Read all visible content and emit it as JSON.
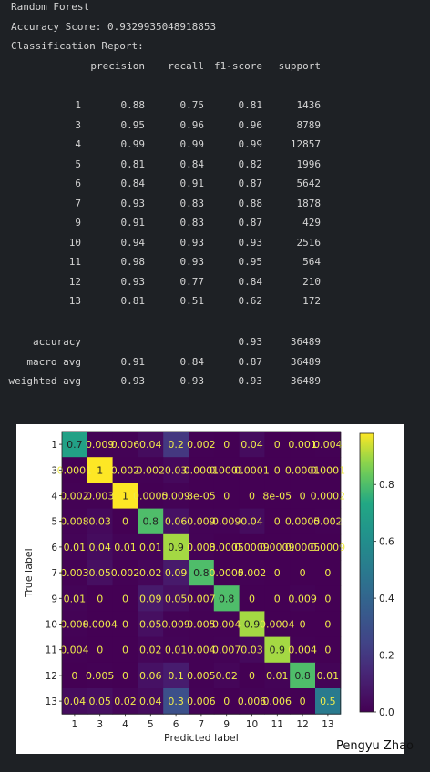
{
  "output": {
    "model_name": "Random Forest",
    "accuracy_line": "Accuracy Score: 0.9329935048918853",
    "report_title": "Classification Report:",
    "headers": [
      "precision",
      "recall",
      "f1-score",
      "support"
    ],
    "rows": [
      {
        "label": "1",
        "precision": "0.88",
        "recall": "0.75",
        "f1": "0.81",
        "support": "1436"
      },
      {
        "label": "3",
        "precision": "0.95",
        "recall": "0.96",
        "f1": "0.96",
        "support": "8789"
      },
      {
        "label": "4",
        "precision": "0.99",
        "recall": "0.99",
        "f1": "0.99",
        "support": "12857"
      },
      {
        "label": "5",
        "precision": "0.81",
        "recall": "0.84",
        "f1": "0.82",
        "support": "1996"
      },
      {
        "label": "6",
        "precision": "0.84",
        "recall": "0.91",
        "f1": "0.87",
        "support": "5642"
      },
      {
        "label": "7",
        "precision": "0.93",
        "recall": "0.83",
        "f1": "0.88",
        "support": "1878"
      },
      {
        "label": "9",
        "precision": "0.91",
        "recall": "0.83",
        "f1": "0.87",
        "support": "429"
      },
      {
        "label": "10",
        "precision": "0.94",
        "recall": "0.93",
        "f1": "0.93",
        "support": "2516"
      },
      {
        "label": "11",
        "precision": "0.98",
        "recall": "0.93",
        "f1": "0.95",
        "support": "564"
      },
      {
        "label": "12",
        "precision": "0.93",
        "recall": "0.77",
        "f1": "0.84",
        "support": "210"
      },
      {
        "label": "13",
        "precision": "0.81",
        "recall": "0.51",
        "f1": "0.62",
        "support": "172"
      }
    ],
    "summary": [
      {
        "label": "accuracy",
        "precision": "",
        "recall": "",
        "f1": "0.93",
        "support": "36489"
      },
      {
        "label": "macro avg",
        "precision": "0.91",
        "recall": "0.84",
        "f1": "0.87",
        "support": "36489"
      },
      {
        "label": "weighted avg",
        "precision": "0.93",
        "recall": "0.93",
        "f1": "0.93",
        "support": "36489"
      }
    ]
  },
  "chart_data": {
    "type": "heatmap",
    "title": "",
    "xlabel": "Predicted label",
    "ylabel": "True label",
    "categories": [
      "1",
      "3",
      "4",
      "5",
      "6",
      "7",
      "9",
      "10",
      "11",
      "12",
      "13"
    ],
    "cells": [
      [
        "0.7",
        "0.009",
        "0.006",
        "0.04",
        "0.2",
        "0.002",
        "0",
        "0.04",
        "0",
        "0.001",
        "0.004"
      ],
      [
        "0.0001",
        "1",
        "0.002",
        "0.002",
        "0.03",
        "0.0001",
        "0.0001",
        "0.0001",
        "0",
        "0.0001",
        "0.0001"
      ],
      [
        "0.002",
        "0.003",
        "1",
        "0.0005",
        "0.009",
        "8e-05",
        "0",
        "0",
        "8e-05",
        "0",
        "0.0002"
      ],
      [
        "0.008",
        "0.03",
        "0",
        "0.8",
        "0.06",
        "0.009",
        "0.009",
        "0.04",
        "0",
        "0.0005",
        "0.002"
      ],
      [
        "0.01",
        "0.04",
        "0.01",
        "0.01",
        "0.9",
        "0.008",
        "0.0005",
        "0.0009",
        "0.0009",
        "0.0005",
        "0.0009"
      ],
      [
        "0.003",
        "0.05",
        "0.002",
        "0.02",
        "0.09",
        "0.8",
        "0.0005",
        "0.002",
        "0",
        "0",
        "0"
      ],
      [
        "0.01",
        "0",
        "0",
        "0.09",
        "0.05",
        "0.007",
        "0.8",
        "0",
        "0",
        "0.009",
        "0"
      ],
      [
        "0.008",
        "0.0004",
        "0",
        "0.05",
        "0.009",
        "0.005",
        "0.004",
        "0.9",
        "0.0004",
        "0",
        "0"
      ],
      [
        "0.004",
        "0",
        "0",
        "0.02",
        "0.01",
        "0.004",
        "0.007",
        "0.03",
        "0.9",
        "0.004",
        "0"
      ],
      [
        "0",
        "0.005",
        "0",
        "0.06",
        "0.1",
        "0.005",
        "0.02",
        "0",
        "0.01",
        "0.8",
        "0.01"
      ],
      [
        "0.04",
        "0.05",
        "0.02",
        "0.04",
        "0.3",
        "0.006",
        "0",
        "0.006",
        "0.006",
        "0",
        "0.5"
      ]
    ],
    "colorbar": {
      "min": 0,
      "max": 0.98,
      "ticks": [
        "0.0",
        "0.2",
        "0.4",
        "0.6",
        "0.8"
      ]
    },
    "colormap": "viridis",
    "watermark": "Pengyu Zhao"
  }
}
